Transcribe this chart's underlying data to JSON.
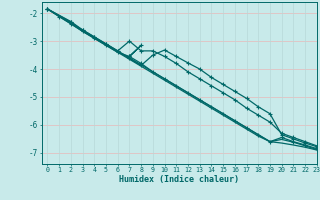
{
  "xlabel": "Humidex (Indice chaleur)",
  "xlim": [
    -0.5,
    23
  ],
  "ylim": [
    -7.4,
    -1.6
  ],
  "yticks": [
    -7,
    -6,
    -5,
    -4,
    -3,
    -2
  ],
  "xticks": [
    0,
    1,
    2,
    3,
    4,
    5,
    6,
    7,
    8,
    9,
    10,
    11,
    12,
    13,
    14,
    15,
    16,
    17,
    18,
    19,
    20,
    21,
    22,
    23
  ],
  "line_color": "#006868",
  "bg_color": "#c8eaea",
  "grid_color_h": "#e8b8b8",
  "grid_color_v": "#b8d8d8",
  "line1_x": [
    0,
    1,
    2,
    3,
    4,
    5,
    6,
    7,
    8,
    9,
    10,
    11,
    12,
    13,
    14,
    15,
    16,
    17,
    18,
    19,
    20,
    21,
    22,
    23
  ],
  "line1_y": [
    -1.85,
    -2.1,
    -2.35,
    -2.6,
    -2.85,
    -3.1,
    -3.35,
    -3.6,
    -3.85,
    -4.1,
    -4.35,
    -4.6,
    -4.85,
    -5.1,
    -5.35,
    -5.6,
    -5.85,
    -6.1,
    -6.35,
    -6.6,
    -6.65,
    -6.72,
    -6.8,
    -6.9
  ],
  "line2_x": [
    0,
    1,
    2,
    3,
    4,
    5,
    6,
    7,
    8,
    9,
    10,
    11,
    12,
    13,
    14,
    15,
    16,
    17,
    18,
    19,
    20,
    21,
    22,
    23
  ],
  "line2_y": [
    -1.85,
    -2.12,
    -2.38,
    -2.65,
    -2.9,
    -3.15,
    -3.4,
    -3.65,
    -3.9,
    -4.15,
    -4.4,
    -4.65,
    -4.9,
    -5.15,
    -5.4,
    -5.65,
    -5.9,
    -6.15,
    -6.4,
    -6.6,
    -6.52,
    -6.62,
    -6.75,
    -6.88
  ],
  "line3_x": [
    0,
    1,
    2,
    3,
    4,
    5,
    6,
    7,
    8,
    7,
    8,
    9,
    10,
    11,
    12,
    13,
    14,
    15,
    16,
    17,
    18,
    19,
    20,
    21,
    22,
    23
  ],
  "line3_y": [
    -1.85,
    -2.12,
    -2.38,
    -2.65,
    -2.9,
    -3.15,
    -3.4,
    -3.55,
    -3.15,
    -3.55,
    -3.8,
    -4.1,
    -4.35,
    -4.6,
    -4.85,
    -5.1,
    -5.35,
    -5.6,
    -5.85,
    -6.1,
    -6.35,
    -6.6,
    -6.45,
    -6.6,
    -6.72,
    -6.85
  ],
  "line4_x": [
    0,
    2,
    3,
    4,
    5,
    6,
    7,
    8,
    9,
    10,
    11,
    12,
    13,
    14,
    15,
    16,
    17,
    18,
    19,
    20,
    21,
    22,
    23
  ],
  "line4_y": [
    -1.85,
    -2.3,
    -2.6,
    -2.85,
    -3.1,
    -3.35,
    -3.0,
    -3.35,
    -3.35,
    -3.55,
    -3.8,
    -4.1,
    -4.35,
    -4.6,
    -4.85,
    -5.1,
    -5.4,
    -5.65,
    -5.9,
    -6.3,
    -6.45,
    -6.6,
    -6.75
  ],
  "line5_x": [
    0,
    2,
    3,
    4,
    5,
    6,
    7,
    8,
    9,
    10,
    11,
    12,
    13,
    14,
    15,
    16,
    17,
    18,
    19,
    20,
    21,
    22,
    23
  ],
  "line5_y": [
    -1.85,
    -2.32,
    -2.62,
    -2.87,
    -3.12,
    -3.37,
    -3.62,
    -3.87,
    -3.5,
    -3.32,
    -3.55,
    -3.78,
    -4.0,
    -4.3,
    -4.55,
    -4.8,
    -5.05,
    -5.35,
    -5.6,
    -6.35,
    -6.5,
    -6.65,
    -6.78
  ]
}
